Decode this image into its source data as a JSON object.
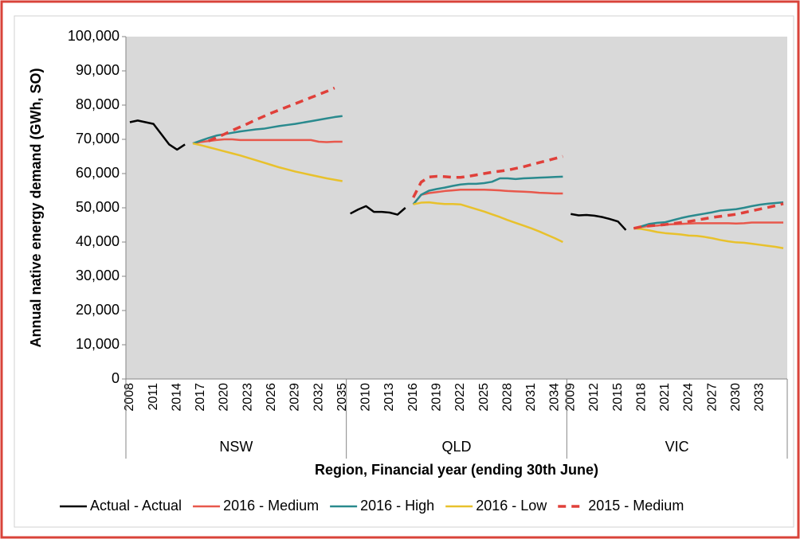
{
  "chart_data": {
    "type": "line",
    "y_label": "Annual native energy demand (GWh, SO)",
    "x_label": "Region, Financial year (ending 30th June)",
    "groups": [
      "NSW",
      "QLD",
      "VIC"
    ],
    "categories": [
      "2008",
      null,
      null,
      "2011",
      null,
      null,
      "2014",
      null,
      null,
      "2017",
      null,
      null,
      "2020",
      null,
      null,
      "2023",
      null,
      null,
      "2026",
      null,
      null,
      "2029",
      null,
      null,
      "2032",
      null,
      null,
      "2035",
      null,
      null,
      "2010",
      null,
      null,
      "2013",
      null,
      null,
      "2016",
      null,
      null,
      "2019",
      null,
      null,
      "2022",
      null,
      null,
      "2025",
      null,
      null,
      "2028",
      null,
      null,
      "2031",
      null,
      null,
      "2034",
      null,
      "2009",
      null,
      null,
      "2012",
      null,
      null,
      "2015",
      null,
      null,
      "2018",
      null,
      null,
      "2021",
      null,
      null,
      "2024",
      null,
      null,
      "2027",
      null,
      null,
      "2030",
      null,
      null,
      "2033",
      null,
      null,
      null
    ],
    "ylim": [
      0,
      100000
    ],
    "yticks": [
      0,
      {
        "value": 10000,
        "label": "10,000"
      },
      {
        "value": 20000,
        "label": "20,000"
      },
      {
        "value": 30000,
        "label": "30,000"
      },
      {
        "value": 40000,
        "label": "40,000"
      },
      {
        "value": 50000,
        "label": "50,000"
      },
      {
        "value": 60000,
        "label": "60,000"
      },
      {
        "value": 70000,
        "label": "70,000"
      },
      {
        "value": 80000,
        "label": "80,000"
      },
      {
        "value": 90000,
        "label": "90,000"
      },
      {
        "value": 100000,
        "label": "100,000"
      }
    ],
    "legend": "bottom",
    "series": [
      {
        "name": "Actual - Actual",
        "color": "#000000",
        "dashed": false,
        "values": [
          75000,
          75500,
          75000,
          74500,
          71500,
          68500,
          67000,
          68500,
          null,
          null,
          null,
          null,
          null,
          null,
          null,
          null,
          null,
          null,
          null,
          null,
          null,
          null,
          null,
          null,
          null,
          null,
          null,
          null,
          48300,
          49500,
          50500,
          48800,
          48800,
          48600,
          48000,
          50000,
          null,
          null,
          null,
          null,
          null,
          null,
          null,
          null,
          null,
          null,
          null,
          null,
          null,
          null,
          null,
          null,
          null,
          null,
          null,
          null,
          48200,
          47800,
          47900,
          47700,
          47300,
          46700,
          46000,
          43500,
          null,
          null,
          null,
          null,
          null,
          null,
          null,
          null,
          null,
          null,
          null,
          null,
          null,
          null,
          null,
          null,
          null,
          null,
          null,
          null
        ]
      },
      {
        "name": "2016 - Medium",
        "color": "#e8584c",
        "dashed": false,
        "values": [
          null,
          null,
          null,
          null,
          null,
          null,
          null,
          null,
          68800,
          69200,
          69500,
          69800,
          70000,
          70000,
          69800,
          69800,
          69800,
          69800,
          69800,
          69800,
          69800,
          69800,
          69800,
          69800,
          69300,
          69200,
          69300,
          69300,
          null,
          null,
          null,
          null,
          null,
          null,
          null,
          null,
          51000,
          53800,
          54300,
          54600,
          54900,
          55100,
          55300,
          55300,
          55300,
          55300,
          55200,
          55100,
          54900,
          54800,
          54700,
          54600,
          54400,
          54300,
          54200,
          54200,
          null,
          null,
          null,
          null,
          null,
          null,
          null,
          null,
          44000,
          44400,
          44700,
          44800,
          45100,
          45200,
          45300,
          45400,
          45500,
          45500,
          45500,
          45500,
          45500,
          45400,
          45500,
          45700,
          45700,
          45700,
          45700,
          45700
        ]
      },
      {
        "name": "2016 - High",
        "color": "#2a8a8e",
        "dashed": false,
        "values": [
          null,
          null,
          null,
          null,
          null,
          null,
          null,
          null,
          68800,
          69600,
          70400,
          71100,
          71500,
          71900,
          72300,
          72600,
          72900,
          73100,
          73500,
          73900,
          74200,
          74500,
          74900,
          75300,
          75700,
          76100,
          76500,
          76800,
          null,
          null,
          null,
          null,
          null,
          null,
          null,
          null,
          51000,
          53800,
          55000,
          55500,
          55900,
          56400,
          56800,
          57000,
          57000,
          57200,
          57600,
          58600,
          58600,
          58400,
          58600,
          58700,
          58800,
          58900,
          59000,
          59100,
          null,
          null,
          null,
          null,
          null,
          null,
          null,
          null,
          44000,
          44600,
          45300,
          45600,
          45800,
          46400,
          47000,
          47500,
          47900,
          48300,
          48700,
          49200,
          49400,
          49600,
          50000,
          50500,
          50900,
          51200,
          51400,
          51600
        ]
      },
      {
        "name": "2016 - Low",
        "color": "#e8c12c",
        "dashed": false,
        "values": [
          null,
          null,
          null,
          null,
          null,
          null,
          null,
          null,
          68800,
          68300,
          67700,
          67100,
          66500,
          65900,
          65300,
          64600,
          63900,
          63200,
          62500,
          61800,
          61200,
          60600,
          60100,
          59600,
          59100,
          58600,
          58200,
          57800,
          null,
          null,
          null,
          null,
          null,
          null,
          null,
          null,
          51000,
          51500,
          51600,
          51300,
          51100,
          51100,
          51000,
          50300,
          49600,
          48900,
          48100,
          47300,
          46400,
          45600,
          44800,
          44000,
          43100,
          42100,
          41100,
          40000,
          null,
          null,
          null,
          null,
          null,
          null,
          null,
          null,
          44000,
          43800,
          43400,
          42900,
          42600,
          42400,
          42200,
          41900,
          41800,
          41500,
          41100,
          40600,
          40200,
          39900,
          39800,
          39500,
          39200,
          38900,
          38600,
          38200
        ]
      },
      {
        "name": "2015 - Medium",
        "color": "#e0403a",
        "dashed": true,
        "values": [
          null,
          null,
          null,
          null,
          null,
          null,
          null,
          null,
          null,
          null,
          69500,
          70500,
          71500,
          72600,
          73600,
          74600,
          75700,
          76700,
          77700,
          78600,
          79500,
          80400,
          81300,
          82200,
          83100,
          84000,
          85000,
          null,
          null,
          null,
          null,
          null,
          null,
          null,
          null,
          null,
          53000,
          57500,
          59000,
          59200,
          59100,
          58900,
          58900,
          59200,
          59600,
          60000,
          60400,
          60700,
          61000,
          61500,
          62000,
          62600,
          63200,
          63800,
          64400,
          65000,
          null,
          null,
          null,
          null,
          null,
          null,
          null,
          null,
          44000,
          44500,
          44700,
          44900,
          45100,
          45400,
          45700,
          46000,
          46400,
          46800,
          47200,
          47500,
          47800,
          48100,
          48600,
          49100,
          49600,
          50100,
          50600,
          51200
        ]
      }
    ]
  }
}
